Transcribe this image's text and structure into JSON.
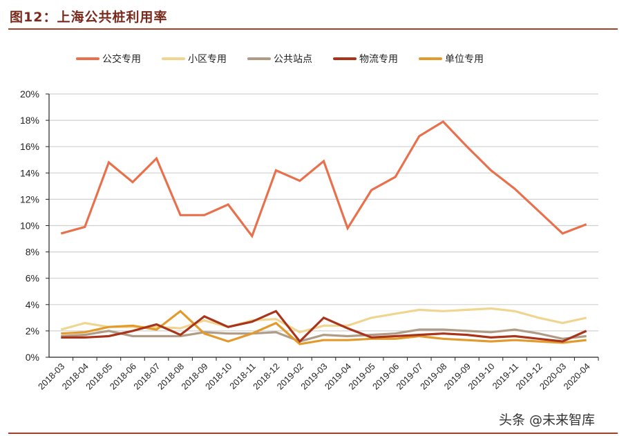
{
  "header": {
    "title": "图12：上海公共桩利用率"
  },
  "legend": [
    {
      "label": "公交专用",
      "color": "#e8704c"
    },
    {
      "label": "小区专用",
      "color": "#f0d590"
    },
    {
      "label": "公共站点",
      "color": "#b09c86"
    },
    {
      "label": "物流专用",
      "color": "#a8341c"
    },
    {
      "label": "单位专用",
      "color": "#e39a2c"
    }
  ],
  "watermark": "头条 @未来智库",
  "chart_data": {
    "type": "line",
    "title": "图12：上海公共桩利用率",
    "xlabel": "",
    "ylabel": "",
    "ylim": [
      0,
      20
    ],
    "yticks": [
      "0%",
      "2%",
      "4%",
      "6%",
      "8%",
      "10%",
      "12%",
      "14%",
      "16%",
      "18%",
      "20%"
    ],
    "grid": true,
    "legend_position": "top",
    "categories": [
      "2018-03",
      "2018-04",
      "2018-05",
      "2018-06",
      "2018-07",
      "2018-08",
      "2018-09",
      "2018-10",
      "2018-11",
      "2018-12",
      "2019-02",
      "2019-03",
      "2019-04",
      "2019-05",
      "2019-06",
      "2019-07",
      "2019-08",
      "2019-09",
      "2019-10",
      "2019-11",
      "2019-12",
      "2020-03",
      "2020-04"
    ],
    "series": [
      {
        "name": "公交专用",
        "color": "#e8704c",
        "values": [
          9.4,
          9.9,
          14.8,
          13.3,
          15.1,
          10.8,
          10.8,
          11.6,
          9.2,
          14.2,
          13.4,
          14.9,
          9.8,
          12.7,
          13.7,
          16.8,
          17.9,
          16.0,
          14.2,
          12.8,
          11.1,
          9.4,
          10.1
        ]
      },
      {
        "name": "小区专用",
        "color": "#f0d590",
        "values": [
          2.1,
          2.6,
          2.3,
          2.3,
          2.3,
          2.2,
          2.8,
          2.3,
          2.8,
          2.9,
          1.9,
          2.4,
          2.4,
          3.0,
          3.3,
          3.6,
          3.5,
          3.6,
          3.7,
          3.5,
          3.0,
          2.6,
          3.0
        ]
      },
      {
        "name": "公共站点",
        "color": "#b09c86",
        "values": [
          1.6,
          1.7,
          2.0,
          1.6,
          1.6,
          1.6,
          1.9,
          1.8,
          1.8,
          1.9,
          1.2,
          1.7,
          1.6,
          1.7,
          1.8,
          2.1,
          2.1,
          2.0,
          1.9,
          2.1,
          1.8,
          1.4,
          1.6
        ]
      },
      {
        "name": "物流专用",
        "color": "#a8341c",
        "values": [
          1.5,
          1.5,
          1.6,
          2.0,
          2.5,
          1.7,
          3.1,
          2.3,
          2.7,
          3.5,
          1.2,
          3.0,
          2.2,
          1.5,
          1.6,
          1.7,
          1.8,
          1.7,
          1.5,
          1.6,
          1.4,
          1.2,
          2.0
        ]
      },
      {
        "name": "单位专用",
        "color": "#e39a2c",
        "values": [
          1.8,
          1.9,
          2.3,
          2.4,
          2.1,
          3.5,
          1.8,
          1.2,
          1.8,
          2.6,
          1.0,
          1.3,
          1.3,
          1.4,
          1.4,
          1.6,
          1.4,
          1.3,
          1.2,
          1.3,
          1.2,
          1.1,
          1.3
        ]
      }
    ]
  }
}
